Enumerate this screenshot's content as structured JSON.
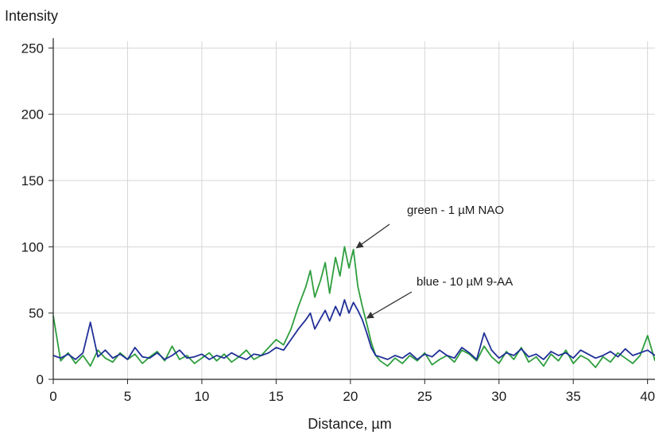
{
  "chart_data": {
    "type": "line",
    "ylabel": "Intensity",
    "xlabel": "Distance, µm",
    "xlim": [
      0,
      40.5
    ],
    "ylim": [
      0,
      255
    ],
    "x_ticks": [
      "0",
      "5",
      "10",
      "15",
      "20",
      "25",
      "30",
      "35",
      "40"
    ],
    "y_ticks": [
      "0",
      "50",
      "100",
      "150",
      "200",
      "250"
    ],
    "grid": true,
    "series": [
      {
        "color": "#2e9e3e",
        "x": [
          0,
          0.5,
          1,
          1.5,
          2,
          2.5,
          3,
          3.5,
          4,
          4.5,
          5,
          5.5,
          6,
          6.5,
          7,
          7.5,
          8,
          8.5,
          9,
          9.5,
          10,
          10.5,
          11,
          11.5,
          12,
          12.5,
          13,
          13.5,
          14,
          14.5,
          15,
          15.5,
          16,
          16.5,
          17,
          17.3,
          17.6,
          18,
          18.3,
          18.6,
          19,
          19.3,
          19.6,
          19.9,
          20.2,
          20.5,
          20.8,
          21.1,
          21.4,
          21.7,
          22,
          22.5,
          23,
          23.5,
          24,
          24.5,
          25,
          25.5,
          26,
          26.5,
          27,
          27.5,
          28,
          28.5,
          29,
          29.5,
          30,
          30.5,
          31,
          31.5,
          32,
          32.5,
          33,
          33.5,
          34,
          34.5,
          35,
          35.5,
          36,
          36.5,
          37,
          37.5,
          38,
          38.5,
          39,
          39.5,
          40,
          40.5
        ],
        "y": [
          48,
          14,
          20,
          12,
          18,
          10,
          22,
          16,
          13,
          20,
          15,
          19,
          12,
          17,
          21,
          14,
          25,
          15,
          18,
          12,
          16,
          20,
          14,
          19,
          13,
          17,
          22,
          15,
          18,
          24,
          30,
          26,
          38,
          55,
          70,
          82,
          62,
          75,
          88,
          65,
          92,
          78,
          100,
          84,
          98,
          70,
          55,
          42,
          28,
          18,
          14,
          10,
          16,
          12,
          18,
          14,
          20,
          11,
          15,
          18,
          13,
          22,
          19,
          14,
          25,
          17,
          12,
          21,
          15,
          24,
          13,
          17,
          10,
          19,
          14,
          22,
          12,
          18,
          15,
          9,
          17,
          13,
          20,
          16,
          12,
          18,
          33,
          14
        ]
      },
      {
        "color": "#1f2f96",
        "x": [
          0,
          0.5,
          1,
          1.5,
          2,
          2.5,
          3,
          3.5,
          4,
          4.5,
          5,
          5.5,
          6,
          6.5,
          7,
          7.5,
          8,
          8.5,
          9,
          9.5,
          10,
          10.5,
          11,
          11.5,
          12,
          12.5,
          13,
          13.5,
          14,
          14.5,
          15,
          15.5,
          16,
          16.5,
          17,
          17.3,
          17.6,
          18,
          18.3,
          18.6,
          19,
          19.3,
          19.6,
          19.9,
          20.2,
          20.5,
          20.8,
          21.1,
          21.4,
          21.7,
          22,
          22.5,
          23,
          23.5,
          24,
          24.5,
          25,
          25.5,
          26,
          26.5,
          27,
          27.5,
          28,
          28.5,
          29,
          29.5,
          30,
          30.5,
          31,
          31.5,
          32,
          32.5,
          33,
          33.5,
          34,
          34.5,
          35,
          35.5,
          36,
          36.5,
          37,
          37.5,
          38,
          38.5,
          39,
          39.5,
          40,
          40.5
        ],
        "y": [
          18,
          16,
          19,
          15,
          20,
          43,
          17,
          22,
          16,
          19,
          15,
          24,
          17,
          16,
          20,
          15,
          18,
          22,
          16,
          17,
          19,
          15,
          18,
          16,
          20,
          17,
          15,
          19,
          18,
          20,
          24,
          22,
          30,
          38,
          45,
          50,
          38,
          46,
          52,
          44,
          55,
          48,
          60,
          50,
          58,
          52,
          45,
          35,
          24,
          18,
          17,
          15,
          18,
          16,
          20,
          15,
          19,
          17,
          22,
          18,
          16,
          24,
          20,
          15,
          35,
          22,
          16,
          20,
          18,
          23,
          17,
          19,
          15,
          21,
          18,
          20,
          16,
          22,
          19,
          16,
          18,
          21,
          17,
          23,
          18,
          20,
          22,
          18
        ]
      }
    ],
    "annotations": [
      {
        "text": "green - 1 µM NAO",
        "target": [
          20.3,
          98
        ]
      },
      {
        "text": "blue - 10 µM 9-AA",
        "target": [
          21.0,
          45
        ]
      }
    ]
  }
}
